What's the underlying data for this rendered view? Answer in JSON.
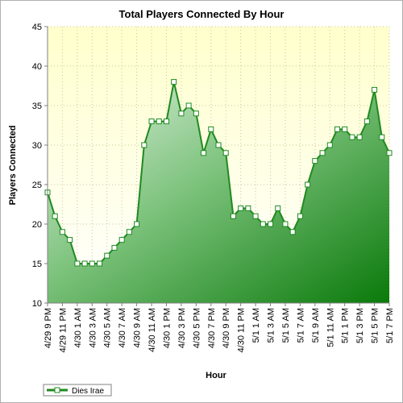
{
  "chart_data": {
    "type": "area",
    "title": "Total Players Connected By Hour",
    "xlabel": "Hour",
    "ylabel": "Players Connected",
    "ylim": [
      10,
      45
    ],
    "yticks": [
      10,
      15,
      20,
      25,
      30,
      35,
      40,
      45
    ],
    "grid": true,
    "legend_position": "bottom-left",
    "colors": {
      "plot_background_top": "#ffffcc",
      "plot_background_bottom": "#ffffff",
      "line": "#1f8a1f",
      "marker_fill": "#ffffff",
      "area_light": "#d8ecd8",
      "area_dark": "#0a7a0a",
      "grid": "#c8c8a0"
    },
    "x_tick_labels": [
      "4/29 9 PM",
      "4/29 11 PM",
      "4/30 1 AM",
      "4/30 3 AM",
      "4/30 5 AM",
      "4/30 7 AM",
      "4/30 9 AM",
      "4/30 11 AM",
      "4/30 1 PM",
      "4/30 3 PM",
      "4/30 5 PM",
      "4/30 7 PM",
      "4/30 9 PM",
      "4/30 11 PM",
      "5/1 1 AM",
      "5/1 3 AM",
      "5/1 5 AM",
      "5/1 7 AM",
      "5/1 9 AM",
      "5/1 11 AM",
      "5/1 1 PM",
      "5/1 3 PM",
      "5/1 5 PM",
      "5/1 7 PM"
    ],
    "series": [
      {
        "name": "Dies Irae",
        "values": [
          24,
          21,
          19,
          18,
          15,
          15,
          15,
          15,
          16,
          17,
          18,
          19,
          20,
          30,
          33,
          33,
          33,
          38,
          34,
          35,
          34,
          29,
          32,
          30,
          29,
          21,
          22,
          22,
          21,
          20,
          20,
          22,
          20,
          19,
          21,
          25,
          28,
          29,
          30,
          32,
          32,
          31,
          31,
          33,
          37,
          31,
          29
        ]
      }
    ]
  }
}
